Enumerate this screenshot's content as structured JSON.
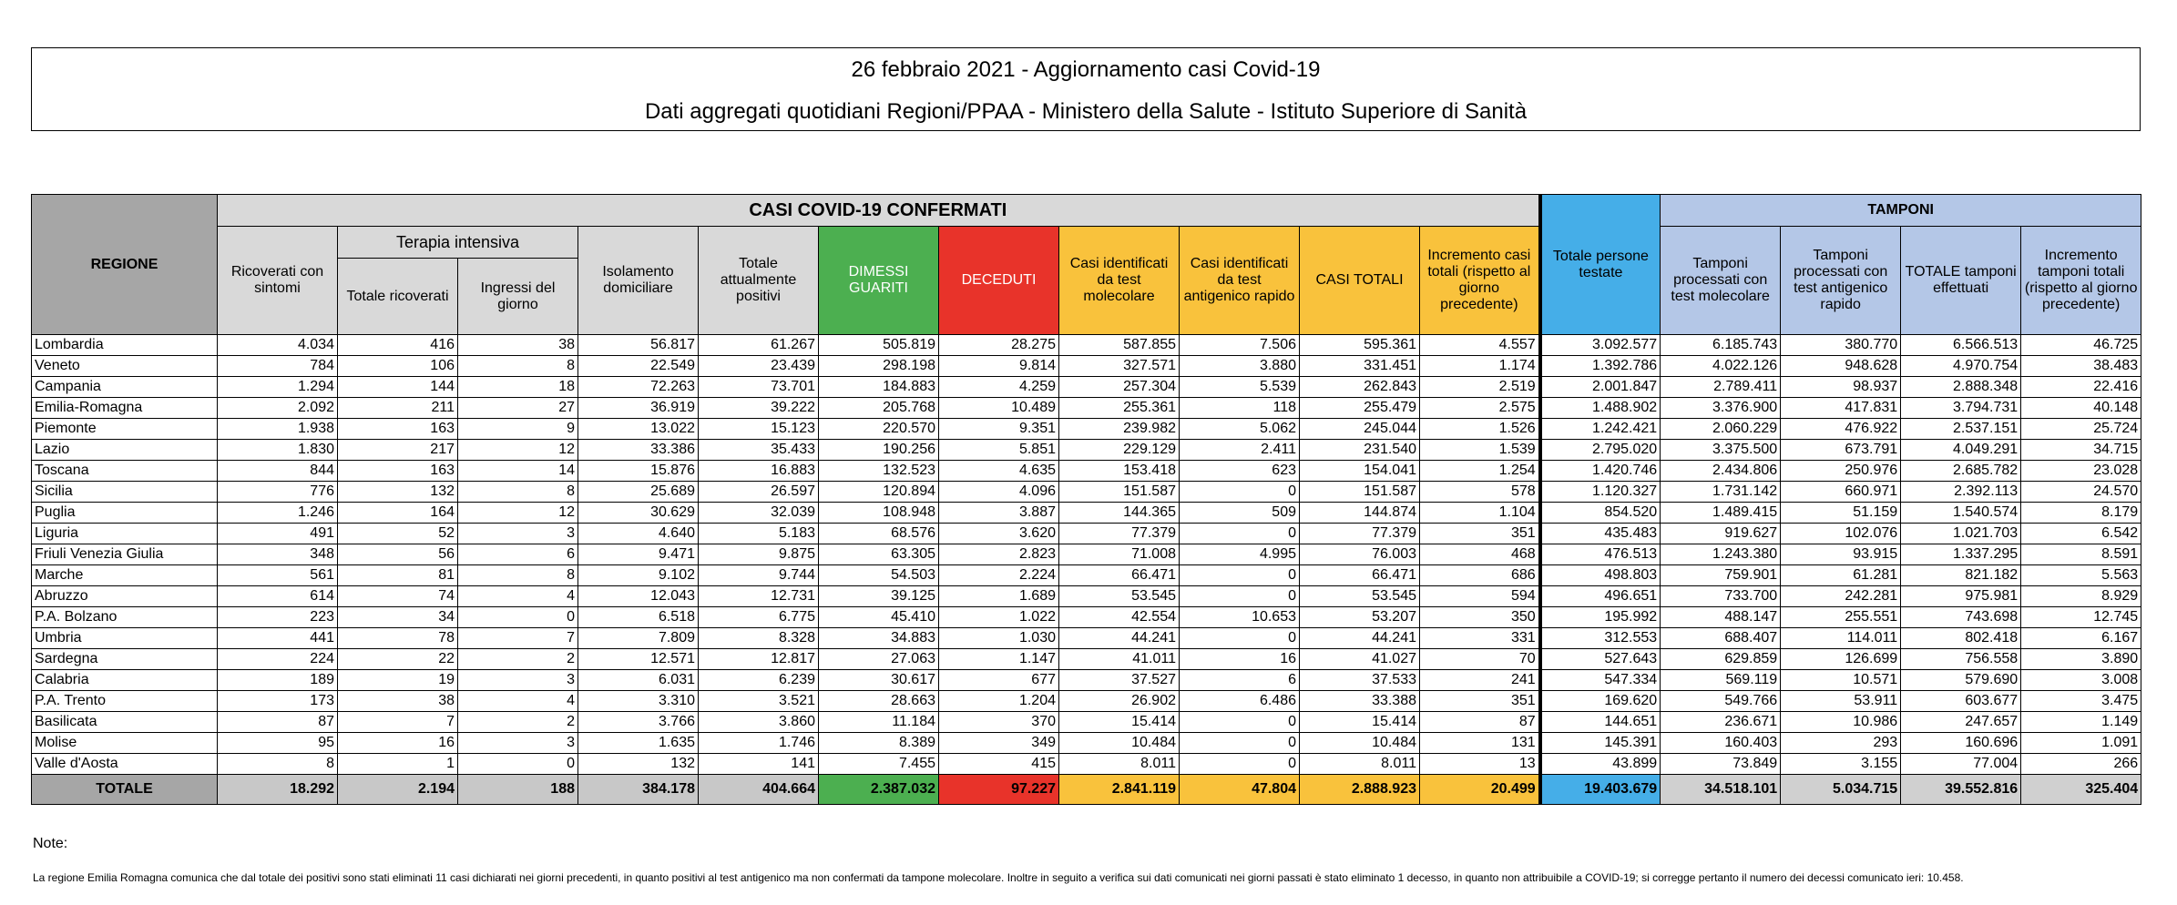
{
  "header": {
    "title": "26 febbraio 2021 - Aggiornamento casi Covid-19",
    "subtitle": "Dati aggregati quotidiani Regioni/PPAA - Ministero della Salute - Istituto Superiore di Sanità"
  },
  "table": {
    "region_header": "REGIONE",
    "group_header": "CASI COVID-19 CONFERMATI",
    "icu_header": "Terapia intensiva",
    "tamponi_header": "TAMPONI",
    "columns": [
      "Ricoverati con sintomi",
      "Totale ricoverati",
      "Ingressi del giorno",
      "Isolamento domiciliare",
      "Totale attualmente positivi",
      "DIMESSI GUARITI",
      "DECEDUTI",
      "Casi identificati da test molecolare",
      "Casi identificati da test antigenico rapido",
      "CASI TOTALI",
      "Incremento casi totali (rispetto al giorno precedente)",
      "Totale persone testate",
      "Tamponi processati con test molecolare",
      "Tamponi processati con test antigenico rapido",
      "TOTALE tamponi effettuati",
      "Incremento tamponi totali (rispetto al giorno precedente)"
    ],
    "rows": [
      [
        "Lombardia",
        "4.034",
        "416",
        "38",
        "56.817",
        "61.267",
        "505.819",
        "28.275",
        "587.855",
        "7.506",
        "595.361",
        "4.557",
        "3.092.577",
        "6.185.743",
        "380.770",
        "6.566.513",
        "46.725"
      ],
      [
        "Veneto",
        "784",
        "106",
        "8",
        "22.549",
        "23.439",
        "298.198",
        "9.814",
        "327.571",
        "3.880",
        "331.451",
        "1.174",
        "1.392.786",
        "4.022.126",
        "948.628",
        "4.970.754",
        "38.483"
      ],
      [
        "Campania",
        "1.294",
        "144",
        "18",
        "72.263",
        "73.701",
        "184.883",
        "4.259",
        "257.304",
        "5.539",
        "262.843",
        "2.519",
        "2.001.847",
        "2.789.411",
        "98.937",
        "2.888.348",
        "22.416"
      ],
      [
        "Emilia-Romagna",
        "2.092",
        "211",
        "27",
        "36.919",
        "39.222",
        "205.768",
        "10.489",
        "255.361",
        "118",
        "255.479",
        "2.575",
        "1.488.902",
        "3.376.900",
        "417.831",
        "3.794.731",
        "40.148"
      ],
      [
        "Piemonte",
        "1.938",
        "163",
        "9",
        "13.022",
        "15.123",
        "220.570",
        "9.351",
        "239.982",
        "5.062",
        "245.044",
        "1.526",
        "1.242.421",
        "2.060.229",
        "476.922",
        "2.537.151",
        "25.724"
      ],
      [
        "Lazio",
        "1.830",
        "217",
        "12",
        "33.386",
        "35.433",
        "190.256",
        "5.851",
        "229.129",
        "2.411",
        "231.540",
        "1.539",
        "2.795.020",
        "3.375.500",
        "673.791",
        "4.049.291",
        "34.715"
      ],
      [
        "Toscana",
        "844",
        "163",
        "14",
        "15.876",
        "16.883",
        "132.523",
        "4.635",
        "153.418",
        "623",
        "154.041",
        "1.254",
        "1.420.746",
        "2.434.806",
        "250.976",
        "2.685.782",
        "23.028"
      ],
      [
        "Sicilia",
        "776",
        "132",
        "8",
        "25.689",
        "26.597",
        "120.894",
        "4.096",
        "151.587",
        "0",
        "151.587",
        "578",
        "1.120.327",
        "1.731.142",
        "660.971",
        "2.392.113",
        "24.570"
      ],
      [
        "Puglia",
        "1.246",
        "164",
        "12",
        "30.629",
        "32.039",
        "108.948",
        "3.887",
        "144.365",
        "509",
        "144.874",
        "1.104",
        "854.520",
        "1.489.415",
        "51.159",
        "1.540.574",
        "8.179"
      ],
      [
        "Liguria",
        "491",
        "52",
        "3",
        "4.640",
        "5.183",
        "68.576",
        "3.620",
        "77.379",
        "0",
        "77.379",
        "351",
        "435.483",
        "919.627",
        "102.076",
        "1.021.703",
        "6.542"
      ],
      [
        "Friuli Venezia Giulia",
        "348",
        "56",
        "6",
        "9.471",
        "9.875",
        "63.305",
        "2.823",
        "71.008",
        "4.995",
        "76.003",
        "468",
        "476.513",
        "1.243.380",
        "93.915",
        "1.337.295",
        "8.591"
      ],
      [
        "Marche",
        "561",
        "81",
        "8",
        "9.102",
        "9.744",
        "54.503",
        "2.224",
        "66.471",
        "0",
        "66.471",
        "686",
        "498.803",
        "759.901",
        "61.281",
        "821.182",
        "5.563"
      ],
      [
        "Abruzzo",
        "614",
        "74",
        "4",
        "12.043",
        "12.731",
        "39.125",
        "1.689",
        "53.545",
        "0",
        "53.545",
        "594",
        "496.651",
        "733.700",
        "242.281",
        "975.981",
        "8.929"
      ],
      [
        "P.A. Bolzano",
        "223",
        "34",
        "0",
        "6.518",
        "6.775",
        "45.410",
        "1.022",
        "42.554",
        "10.653",
        "53.207",
        "350",
        "195.992",
        "488.147",
        "255.551",
        "743.698",
        "12.745"
      ],
      [
        "Umbria",
        "441",
        "78",
        "7",
        "7.809",
        "8.328",
        "34.883",
        "1.030",
        "44.241",
        "0",
        "44.241",
        "331",
        "312.553",
        "688.407",
        "114.011",
        "802.418",
        "6.167"
      ],
      [
        "Sardegna",
        "224",
        "22",
        "2",
        "12.571",
        "12.817",
        "27.063",
        "1.147",
        "41.011",
        "16",
        "41.027",
        "70",
        "527.643",
        "629.859",
        "126.699",
        "756.558",
        "3.890"
      ],
      [
        "Calabria",
        "189",
        "19",
        "3",
        "6.031",
        "6.239",
        "30.617",
        "677",
        "37.527",
        "6",
        "37.533",
        "241",
        "547.334",
        "569.119",
        "10.571",
        "579.690",
        "3.008"
      ],
      [
        "P.A. Trento",
        "173",
        "38",
        "4",
        "3.310",
        "3.521",
        "28.663",
        "1.204",
        "26.902",
        "6.486",
        "33.388",
        "351",
        "169.620",
        "549.766",
        "53.911",
        "603.677",
        "3.475"
      ],
      [
        "Basilicata",
        "87",
        "7",
        "2",
        "3.766",
        "3.860",
        "11.184",
        "370",
        "15.414",
        "0",
        "15.414",
        "87",
        "144.651",
        "236.671",
        "10.986",
        "247.657",
        "1.149"
      ],
      [
        "Molise",
        "95",
        "16",
        "3",
        "1.635",
        "1.746",
        "8.389",
        "349",
        "10.484",
        "0",
        "10.484",
        "131",
        "145.391",
        "160.403",
        "293",
        "160.696",
        "1.091"
      ],
      [
        "Valle d'Aosta",
        "8",
        "1",
        "0",
        "132",
        "141",
        "7.455",
        "415",
        "8.011",
        "0",
        "8.011",
        "13",
        "43.899",
        "73.849",
        "3.155",
        "77.004",
        "266"
      ]
    ],
    "total": [
      "TOTALE",
      "18.292",
      "2.194",
      "188",
      "384.178",
      "404.664",
      "2.387.032",
      "97.227",
      "2.841.119",
      "47.804",
      "2.888.923",
      "20.499",
      "19.403.679",
      "34.518.101",
      "5.034.715",
      "39.552.816",
      "325.404"
    ]
  },
  "note": {
    "label": "Note:",
    "text": "La regione Emilia Romagna comunica che dal totale dei positivi sono stati eliminati 11 casi dichiarati nei giorni precedenti, in quanto positivi al test antigenico ma non confermati da tampone molecolare. Inoltre in seguito a verifica sui dati comunicati nei giorni passati è stato eliminato 1 decesso, in quanto non attribuibile a COVID-19; si corregge pertanto il numero dei decessi comunicato ieri: 10.458."
  }
}
